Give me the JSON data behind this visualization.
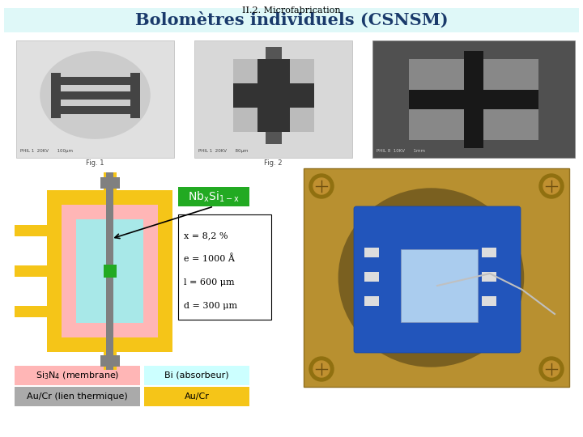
{
  "title_small": "II.2. Microfabrication",
  "title_main": "Bolomètres individuels (CSNSM)",
  "title_small_color": "#000000",
  "title_main_color": "#1a3a6b",
  "title_bg_color": "#dff8f8",
  "bg_color": "#ffffff",
  "nbxsi_bg": "#22aa22",
  "nbxsi_text_color": "#ffffff",
  "params_text": [
    "x = 8,2 %",
    "e = 1000 Å",
    "l = 600 μm",
    "d = 300 μm"
  ],
  "yellow_color": "#f5c518",
  "pink_color": "#ffb6b6",
  "cyan_color": "#a8e8e8",
  "gray_color": "#808080",
  "green_dot_color": "#22aa22",
  "photo_gold": "#c8a030",
  "photo_blue": "#2244bb",
  "photo_chip": "#aaccee"
}
